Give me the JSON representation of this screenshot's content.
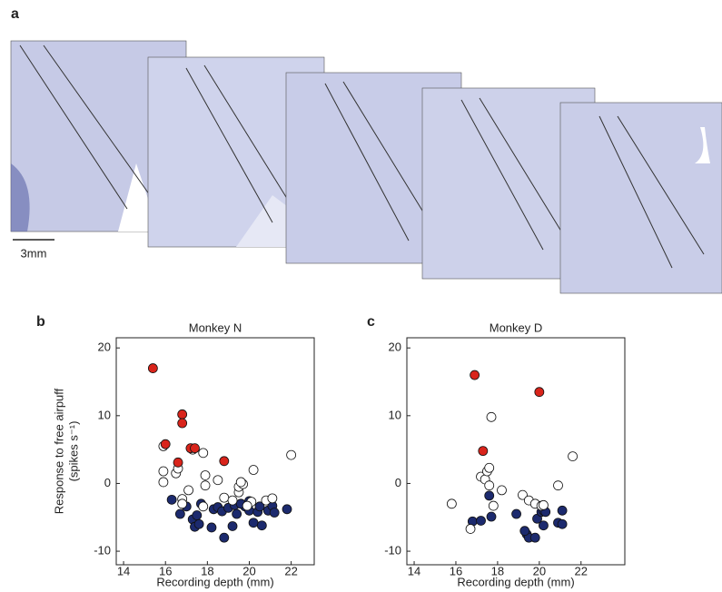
{
  "panel_labels": [
    "a",
    "b",
    "c"
  ],
  "scale_bar_label": "3mm",
  "chart_data": [
    {
      "type": "scatter",
      "title": "Monkey N",
      "xlabel": "Recording depth (mm)",
      "ylabel": [
        "Response to free airpuff",
        "(spikes s⁻¹)"
      ],
      "xlim": [
        13.65,
        23.1
      ],
      "ylim": [
        -12,
        21.5
      ],
      "xticks": [
        14,
        16,
        18,
        20,
        22
      ],
      "yticks": [
        -10,
        0,
        10,
        20
      ],
      "series": [
        {
          "color": "#1c2a6e",
          "x": [
            16.3,
            16.7,
            17.0,
            17.3,
            17.4,
            17.5,
            17.7,
            17.6,
            18.2,
            18.3,
            18.8,
            18.5,
            18.7,
            19.0,
            19.2,
            19.4,
            19.3,
            19.8,
            20.0,
            20.2,
            20.4,
            20.6,
            20.5,
            20.9,
            21.1,
            21.2,
            21.8,
            20.0,
            19.6
          ],
          "values": [
            -2.4,
            -4.5,
            -3.4,
            -5.3,
            -6.4,
            -4.7,
            -3.0,
            -6.0,
            -6.5,
            -3.8,
            -8.0,
            -3.5,
            -4.1,
            -3.6,
            -6.3,
            -4.5,
            -3.2,
            -3.4,
            -4.0,
            -5.8,
            -4.2,
            -6.2,
            -3.4,
            -4.0,
            -3.3,
            -4.3,
            -3.8,
            -2.6,
            -3.0
          ]
        },
        {
          "color": "#ffffff",
          "x": [
            15.9,
            15.9,
            15.9,
            16.5,
            16.6,
            16.8,
            16.8,
            17.1,
            17.3,
            17.8,
            17.9,
            17.9,
            17.8,
            18.5,
            18.8,
            19.2,
            19.5,
            19.5,
            19.7,
            19.6,
            20.2,
            20.1,
            20.8,
            21.1,
            22.0,
            19.9
          ],
          "values": [
            5.5,
            1.8,
            0.2,
            1.5,
            2.2,
            -2.3,
            -3.0,
            -1.0,
            5.0,
            4.5,
            -0.3,
            1.2,
            -3.4,
            0.5,
            -2.1,
            -2.5,
            -1.3,
            -0.5,
            -0.1,
            0.2,
            2.0,
            -2.7,
            -2.5,
            -2.2,
            4.2,
            -3.3
          ]
        },
        {
          "color": "#d9241b",
          "x": [
            15.4,
            16.0,
            16.8,
            16.8,
            16.6,
            17.2,
            17.4,
            18.8
          ],
          "values": [
            17.0,
            5.8,
            10.2,
            8.9,
            3.1,
            5.2,
            5.2,
            3.3
          ]
        }
      ]
    },
    {
      "type": "scatter",
      "title": "Monkey D",
      "xlabel": "Recording depth (mm)",
      "xlim": [
        13.65,
        24.1
      ],
      "ylim": [
        -12,
        21.5
      ],
      "xticks": [
        14,
        16,
        18,
        20,
        22
      ],
      "yticks": [
        -10,
        0,
        10,
        20
      ],
      "series": [
        {
          "color": "#1c2a6e",
          "x": [
            16.8,
            17.2,
            17.7,
            17.6,
            18.9,
            19.4,
            19.5,
            19.8,
            19.9,
            20.1,
            20.2,
            20.2,
            20.9,
            21.1,
            21.1,
            19.3,
            20.3
          ],
          "values": [
            -5.6,
            -5.5,
            -4.9,
            -1.8,
            -4.5,
            -7.5,
            -8.0,
            -8.0,
            -5.2,
            -4.2,
            -6.2,
            -4.0,
            -5.8,
            -4.0,
            -6.0,
            -7.0,
            -4.2
          ]
        },
        {
          "color": "#ffffff",
          "x": [
            15.8,
            16.7,
            17.2,
            17.4,
            17.5,
            17.6,
            17.7,
            17.6,
            17.8,
            18.2,
            19.2,
            19.5,
            19.8,
            20.1,
            20.2,
            20.9,
            21.6
          ],
          "values": [
            -3.0,
            -6.7,
            1.0,
            0.6,
            1.8,
            2.3,
            9.8,
            -0.3,
            -3.3,
            -1.0,
            -1.7,
            -2.5,
            -3.0,
            -3.3,
            -3.2,
            -0.3,
            4.0
          ]
        },
        {
          "color": "#d9241b",
          "x": [
            16.9,
            20.0,
            17.3
          ],
          "values": [
            16.0,
            13.5,
            4.8
          ]
        }
      ]
    }
  ]
}
